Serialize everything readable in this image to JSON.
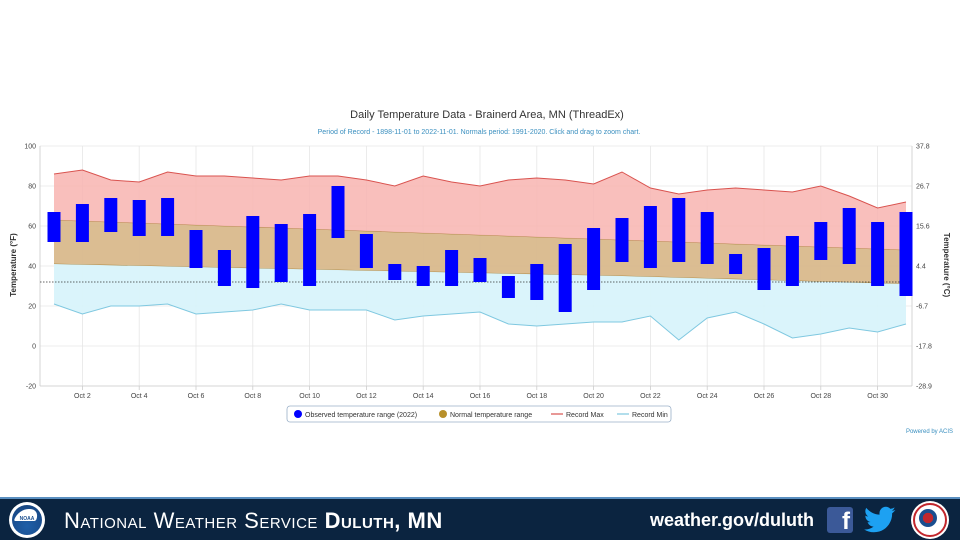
{
  "chart_data": {
    "type": "bar",
    "title": "Daily Temperature Data - Brainerd Area, MN (ThreadEx)",
    "subtitle": "Period of Record - 1898-11-01 to 2022-11-01. Normals period: 1991-2020. Click and drag to zoom chart.",
    "ylabel_left": "Temperature (°F)",
    "ylabel_right": "Temperature (°C)",
    "ylim": [
      -20,
      100
    ],
    "yticks_left": [
      -20,
      0,
      20,
      40,
      60,
      80,
      100
    ],
    "yticks_right": [
      "-28.9",
      "-17.8",
      "-6.7",
      "4.4",
      "15.6",
      "26.7",
      "37.8"
    ],
    "grid": true,
    "freezing_line": 32,
    "x_day_labels": [
      "Oct 2",
      "Oct 4",
      "Oct 6",
      "Oct 8",
      "Oct 10",
      "Oct 12",
      "Oct 14",
      "Oct 16",
      "Oct 18",
      "Oct 20",
      "Oct 22",
      "Oct 24",
      "Oct 26",
      "Oct 28",
      "Oct 30"
    ],
    "x_label_days": [
      2,
      4,
      6,
      8,
      10,
      12,
      14,
      16,
      18,
      20,
      22,
      24,
      26,
      28,
      30
    ],
    "days": [
      1,
      2,
      3,
      4,
      5,
      6,
      7,
      8,
      9,
      10,
      11,
      12,
      13,
      14,
      15,
      16,
      17,
      18,
      19,
      20,
      21,
      22,
      23,
      24,
      25,
      26,
      27,
      28,
      29,
      30,
      31
    ],
    "legend_position": "bottom-center",
    "series": [
      {
        "name": "Observed temperature range (2022)",
        "kind": "range-bar",
        "color": "#0000ff",
        "low": [
          52,
          52,
          57,
          55,
          55,
          39,
          30,
          29,
          32,
          30,
          54,
          39,
          33,
          30,
          30,
          32,
          24,
          23,
          17,
          28,
          42,
          39,
          42,
          41,
          36,
          28,
          30,
          43,
          41,
          30,
          25
        ],
        "high": [
          67,
          71,
          74,
          73,
          74,
          58,
          48,
          65,
          61,
          66,
          80,
          56,
          41,
          40,
          48,
          44,
          35,
          41,
          51,
          59,
          64,
          70,
          74,
          67,
          46,
          49,
          55,
          62,
          69,
          62,
          67
        ]
      },
      {
        "name": "Normal temperature range",
        "kind": "area-range",
        "color": "#c8a050",
        "low": [
          41,
          40.7,
          40.4,
          40.1,
          39.8,
          39.5,
          39.2,
          38.9,
          38.6,
          38.3,
          38,
          37.7,
          37.4,
          37.1,
          36.8,
          36.5,
          36.2,
          35.9,
          35.6,
          35.3,
          35,
          34.6,
          34.2,
          33.8,
          33.4,
          33,
          32.6,
          32.2,
          31.8,
          31.4,
          31
        ],
        "high": [
          63,
          62.5,
          62,
          61.5,
          61,
          60.5,
          60,
          59.5,
          59,
          58.5,
          58,
          57.5,
          57,
          56.5,
          56,
          55.5,
          55,
          54.5,
          54,
          53.5,
          53,
          52.5,
          52,
          51.5,
          51,
          50.5,
          50,
          49.5,
          49,
          48.5,
          48
        ]
      },
      {
        "name": "Record Max",
        "kind": "line",
        "color": "#d9534f",
        "values": [
          86,
          88,
          83,
          82,
          87,
          85,
          85,
          84,
          83,
          85,
          85,
          83,
          80,
          85,
          82,
          80,
          83,
          84,
          83,
          81,
          87,
          79,
          76,
          78,
          79,
          78,
          77,
          80,
          75,
          69,
          72
        ]
      },
      {
        "name": "Record Min",
        "kind": "line",
        "color": "#7fc8e0",
        "values": [
          21,
          16,
          20,
          20,
          21,
          16,
          17,
          18,
          21,
          18,
          18,
          18,
          13,
          15,
          16,
          17,
          11,
          10,
          11,
          12,
          12,
          15,
          3,
          14,
          17,
          11,
          4,
          6,
          9,
          7,
          11
        ]
      }
    ],
    "credit": "Powered by ACIS"
  },
  "footer": {
    "org_prefix": "National Weather Service",
    "org_office": "Duluth, MN",
    "url": "weather.gov/duluth",
    "facebook_glyph": "f",
    "noaa_text": "NOAA",
    "icons": [
      "noaa-logo",
      "facebook-icon",
      "twitter-icon",
      "nws-logo"
    ],
    "colors": {
      "bar": "#0b2440",
      "accent": "#5a8fc0"
    }
  }
}
